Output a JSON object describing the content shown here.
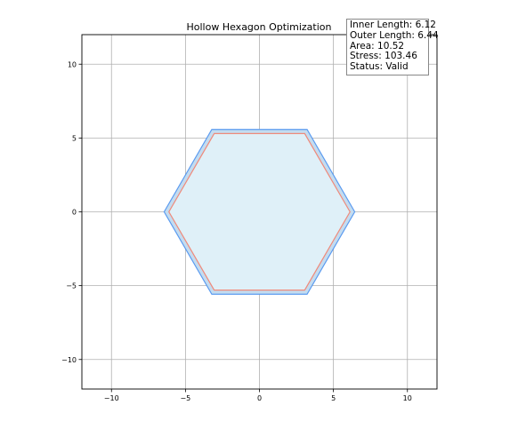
{
  "chart_data": {
    "type": "polygon",
    "title": "Hollow Hexagon Optimization",
    "xlabel": "",
    "ylabel": "",
    "xlim": [
      -12,
      12
    ],
    "ylim": [
      -12,
      12
    ],
    "xticks": [
      -10,
      -5,
      0,
      5,
      10
    ],
    "yticks": [
      -10,
      -5,
      0,
      5,
      10
    ],
    "xtick_labels": [
      "−10",
      "−5",
      "0",
      "5",
      "10"
    ],
    "ytick_labels": [
      "−10",
      "−5",
      "0",
      "5",
      "10"
    ],
    "grid": true,
    "shapes": [
      {
        "role": "outer",
        "side_length": 6.44,
        "vertices": [
          [
            6.44,
            0
          ],
          [
            3.22,
            5.58
          ],
          [
            -3.22,
            5.58
          ],
          [
            -6.44,
            0
          ],
          [
            -3.22,
            -5.58
          ],
          [
            3.22,
            -5.58
          ]
        ],
        "fill": "#c3dcf0",
        "stroke": "#5b9bf0"
      },
      {
        "role": "inner",
        "side_length": 6.12,
        "vertices": [
          [
            6.12,
            0
          ],
          [
            3.06,
            5.3
          ],
          [
            -3.06,
            5.3
          ],
          [
            -6.12,
            0
          ],
          [
            -3.06,
            -5.3
          ],
          [
            3.06,
            -5.3
          ]
        ],
        "fill": "#dff0f8",
        "stroke": "#f08a7a"
      }
    ],
    "annotation": {
      "lines": [
        "Inner Length: 6.12",
        "Outer Length: 6.44",
        "Area: 10.52",
        "Stress: 103.46",
        "Status: Valid"
      ],
      "placement": "top-right"
    }
  }
}
